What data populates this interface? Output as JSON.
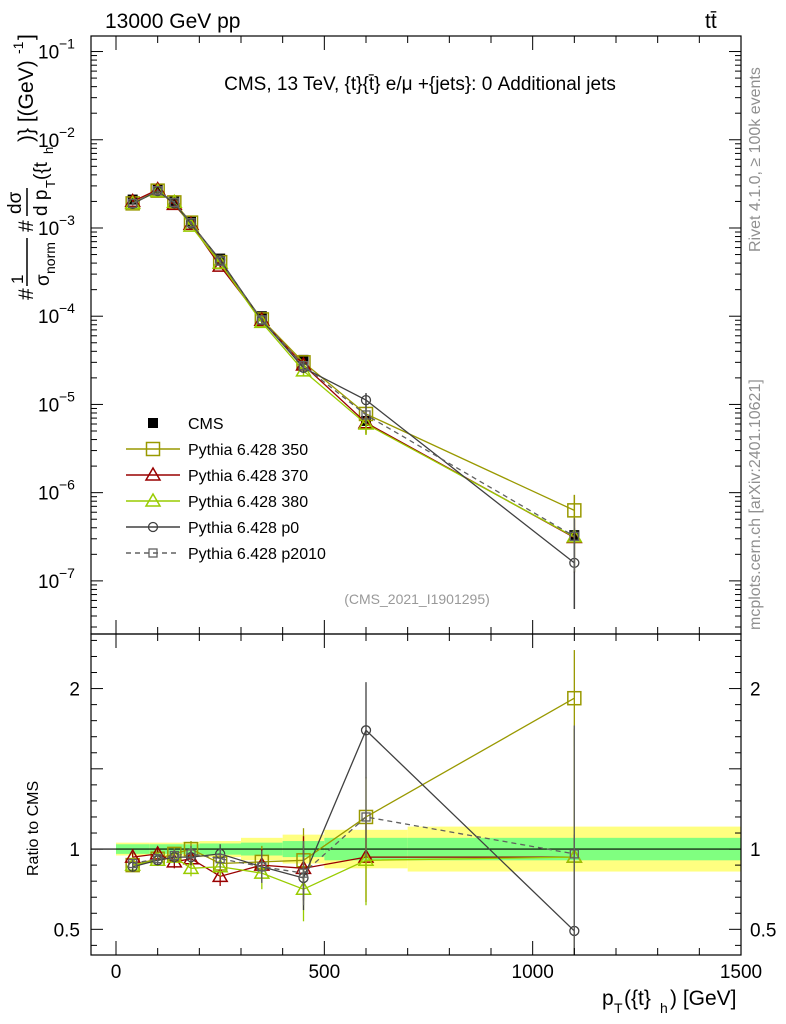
{
  "header": {
    "left": "13000 GeV pp",
    "right": "tt̄"
  },
  "side_labels": {
    "rivet": "Rivet 4.1.0, ≥ 100k events",
    "mcplots": "mcplots.cern.ch [arXiv:2401.10621]"
  },
  "colors": {
    "cms": "#000000",
    "p350": "#999900",
    "p370": "#990000",
    "p380": "#99cc00",
    "p0": "#404040",
    "p2010": "#606060",
    "band_stat": "#80ff80",
    "band_tot": "#ffff80"
  },
  "chart_data": [
    {
      "type": "line",
      "title": "CMS, 13 TeV, {t}{t̄} e/μ +{jets}: 0 Additional jets",
      "watermark": "(CMS_2021_I1901295)",
      "ylabel": "# 1/σ_norm # dσ/d p_T({t}_h) [(GeV)^-1]",
      "yscale": "log",
      "ylim": [
        2.5e-08,
        0.15
      ],
      "yticks": [
        {
          "v": 0.1,
          "base": "10",
          "exp": "−1"
        },
        {
          "v": 0.01,
          "base": "10",
          "exp": "−2"
        },
        {
          "v": 0.001,
          "base": "10",
          "exp": "−3"
        },
        {
          "v": 0.0001,
          "base": "10",
          "exp": "−4"
        },
        {
          "v": 1e-05,
          "base": "10",
          "exp": "−5"
        },
        {
          "v": 1e-06,
          "base": "10",
          "exp": "−6"
        },
        {
          "v": 1e-07,
          "base": "10",
          "exp": "−7"
        }
      ],
      "xlim": [
        -60,
        1500
      ],
      "x": [
        40,
        100,
        140,
        180,
        250,
        350,
        450,
        600,
        1100
      ],
      "x_edges": [
        0,
        80,
        120,
        160,
        200,
        300,
        400,
        500,
        700,
        1500
      ],
      "series": [
        {
          "name": "CMS",
          "key": "cms",
          "values": [
            0.0021,
            0.0028,
            0.002,
            0.00118,
            0.00045,
            0.0001,
            3.2e-05,
            6.5e-06,
            3.3e-07
          ],
          "err": [
            0.05,
            0.05,
            0.05,
            0.05,
            0.05,
            0.06,
            0.08,
            0.12,
            0.2
          ]
        },
        {
          "name": "Pythia 6.428 350",
          "key": "p350",
          "values": [
            0.0019,
            0.00265,
            0.00195,
            0.00115,
            0.00041,
            9.2e-05,
            3e-05,
            7.8e-06,
            6.3e-07
          ],
          "err": [
            0.04,
            0.04,
            0.04,
            0.04,
            0.05,
            0.06,
            0.1,
            0.2,
            0.5
          ]
        },
        {
          "name": "Pythia 6.428 370",
          "key": "p370",
          "values": [
            0.002,
            0.00272,
            0.00185,
            0.0011,
            0.00037,
            9e-05,
            2.8e-05,
            6.2e-06,
            3.1e-07
          ],
          "err": [
            0.04,
            0.04,
            0.04,
            0.04,
            0.05,
            0.06,
            0.1,
            0.25,
            0.6
          ]
        },
        {
          "name": "Pythia 6.428 380",
          "key": "p380",
          "values": [
            0.0019,
            0.0026,
            0.00195,
            0.00105,
            0.0004,
            8.5e-05,
            2.4e-05,
            6e-06,
            3.15e-07
          ],
          "err": [
            0.04,
            0.04,
            0.04,
            0.04,
            0.05,
            0.06,
            0.12,
            0.25,
            0.6
          ]
        },
        {
          "name": "Pythia 6.428 p0",
          "key": "p0",
          "values": [
            0.00188,
            0.00262,
            0.0019,
            0.00112,
            0.000435,
            9e-05,
            2.6e-05,
            1.12e-05,
            1.6e-07
          ],
          "err": [
            0.04,
            0.04,
            0.04,
            0.04,
            0.05,
            0.06,
            0.12,
            0.2,
            0.7
          ]
        },
        {
          "name": "Pythia 6.428 p2010",
          "key": "p2010",
          "values": [
            0.0019,
            0.00265,
            0.00195,
            0.00115,
            0.00042,
            9.1e-05,
            2.75e-05,
            7.6e-06,
            3.2e-07
          ],
          "err": [
            0.04,
            0.04,
            0.04,
            0.04,
            0.05,
            0.06,
            0.1,
            0.22,
            0.6
          ]
        }
      ],
      "legend_position": "left-middle"
    },
    {
      "type": "line",
      "ylabel": "Ratio to CMS",
      "xlabel": "p_T({t}_h) [GeV]",
      "ylim": [
        0.34,
        2.34
      ],
      "yticks": [
        0.5,
        1,
        2
      ],
      "xlim": [
        -60,
        1500
      ],
      "xticks": [
        0,
        500,
        1000,
        1500
      ],
      "x": [
        40,
        100,
        140,
        180,
        250,
        350,
        450,
        600,
        1100
      ],
      "bands": {
        "edges": [
          0,
          80,
          120,
          160,
          200,
          300,
          400,
          500,
          700,
          1500
        ],
        "stat": [
          0.03,
          0.03,
          0.03,
          0.03,
          0.035,
          0.04,
          0.05,
          0.07,
          0.07
        ],
        "total": [
          0.04,
          0.04,
          0.04,
          0.045,
          0.05,
          0.07,
          0.09,
          0.12,
          0.14
        ]
      },
      "series": [
        {
          "key": "p350",
          "values": [
            0.9,
            0.94,
            0.97,
            1.0,
            0.91,
            0.92,
            0.93,
            1.2,
            1.94
          ],
          "err": [
            0.03,
            0.03,
            0.04,
            0.05,
            0.06,
            0.1,
            0.2,
            0.25,
            0.3
          ]
        },
        {
          "key": "p370",
          "values": [
            0.95,
            0.97,
            0.92,
            0.94,
            0.83,
            0.9,
            0.88,
            0.95,
            0.95
          ],
          "err": [
            0.03,
            0.03,
            0.04,
            0.05,
            0.06,
            0.1,
            0.2,
            0.28,
            0.8
          ]
        },
        {
          "key": "p380",
          "values": [
            0.9,
            0.93,
            0.95,
            0.88,
            0.89,
            0.85,
            0.75,
            0.93,
            0.95
          ],
          "err": [
            0.03,
            0.03,
            0.04,
            0.05,
            0.06,
            0.1,
            0.2,
            0.28,
            0.8
          ]
        },
        {
          "key": "p0",
          "values": [
            0.89,
            0.93,
            0.95,
            0.95,
            0.97,
            0.89,
            0.82,
            1.74,
            0.49
          ],
          "err": [
            0.03,
            0.03,
            0.04,
            0.05,
            0.06,
            0.1,
            0.2,
            0.3,
            0.6
          ]
        },
        {
          "key": "p2010",
          "values": [
            0.91,
            0.94,
            0.96,
            0.97,
            0.94,
            0.89,
            0.85,
            1.2,
            0.97
          ],
          "err": [
            0.03,
            0.03,
            0.04,
            0.05,
            0.06,
            0.1,
            0.2,
            0.25,
            0.8
          ]
        }
      ]
    }
  ]
}
